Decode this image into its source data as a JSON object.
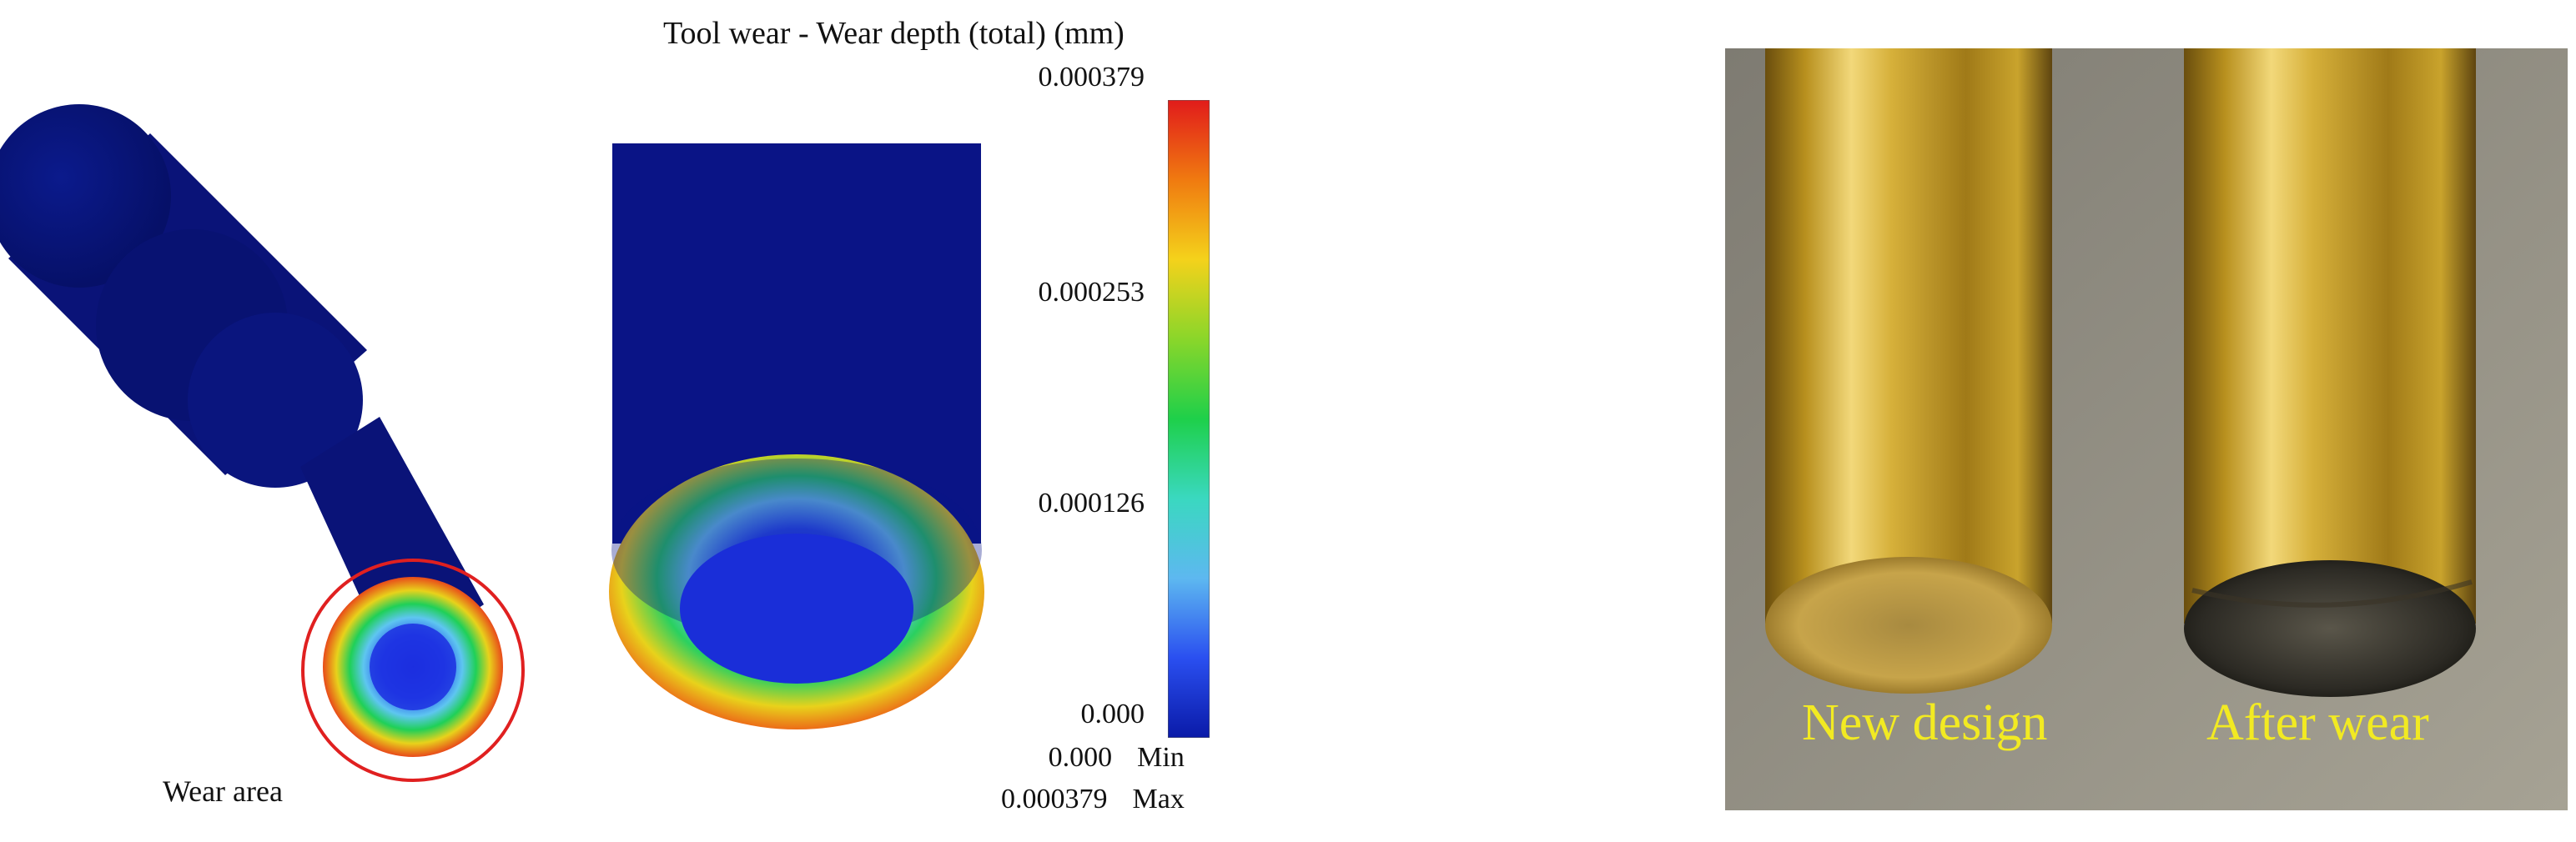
{
  "figure": {
    "simulation": {
      "legend_title": "Tool wear - Wear depth (total) (mm)",
      "colorbar": {
        "ticks": [
          "0.000379",
          "0.000253",
          "0.000126",
          "0.000"
        ],
        "colors": [
          "#e11b1b",
          "#f07a10",
          "#f4d21b",
          "#8ad62a",
          "#1ed04a",
          "#3ad8c0",
          "#5db8f0",
          "#2a4ff0",
          "#0a1aa8"
        ]
      },
      "min_row": {
        "value": "0.000",
        "label": "Min"
      },
      "max_row": {
        "value": "0.000379",
        "label": "Max"
      },
      "annotation": "Wear area",
      "colors": {
        "tool_body": "#0a1378",
        "highlight_circle": "#e02020"
      }
    },
    "photo": {
      "labels": {
        "new_design": "New design",
        "after_wear": "After wear"
      },
      "colors": {
        "brass": "#c9a32c",
        "label": "#f2ea22"
      }
    }
  }
}
